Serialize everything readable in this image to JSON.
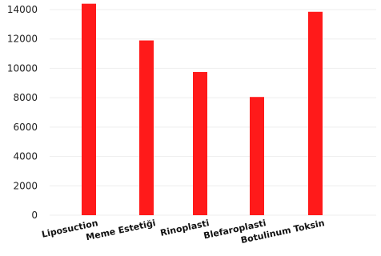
{
  "chart_data": {
    "type": "bar",
    "categories": [
      "Liposuction",
      "Meme Estetiği",
      "Rinoplasti",
      "Blefaroplasti",
      "Botulinum Toksin"
    ],
    "values": [
      14400,
      11900,
      9750,
      8050,
      13850
    ],
    "yticks": [
      0,
      2000,
      4000,
      6000,
      8000,
      10000,
      12000,
      14000
    ],
    "ylim": [
      0,
      15000
    ],
    "title": "",
    "xlabel": "",
    "ylabel": "",
    "grid": true,
    "legend": "none",
    "bar_color": "#ff1a1a",
    "grid_color": "#eeeeee"
  }
}
